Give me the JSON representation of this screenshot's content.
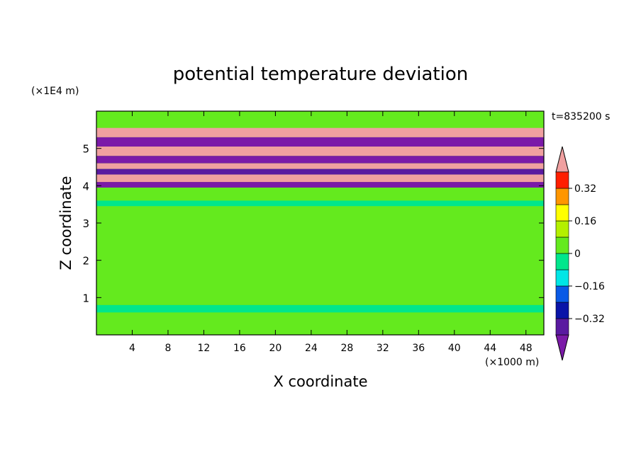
{
  "chart_data": {
    "type": "heatmap",
    "title": "potential temperature deviation",
    "xlabel": "X coordinate",
    "ylabel": "Z coordinate",
    "x_unit": "(×1000 m)",
    "y_unit": "(×1E4 m)",
    "time_label": "t=835200 s",
    "xlim": [
      0,
      50
    ],
    "ylim": [
      0,
      6
    ],
    "x_ticks": [
      4,
      8,
      12,
      16,
      20,
      24,
      28,
      32,
      36,
      40,
      44,
      48
    ],
    "x_tick_labels": [
      "4",
      "8",
      "12",
      "16",
      "20",
      "24",
      "28",
      "32",
      "36",
      "40",
      "44",
      "48"
    ],
    "y_ticks": [
      1,
      2,
      3,
      4,
      5
    ],
    "y_tick_labels": [
      "1",
      "2",
      "3",
      "4",
      "5"
    ],
    "colorbar": {
      "levels": [
        -0.4,
        -0.32,
        -0.24,
        -0.16,
        -0.08,
        0,
        0.08,
        0.16,
        0.24,
        0.32,
        0.4
      ],
      "colors": [
        "#7b1aa8",
        "#5a1aa0",
        "#0a14a8",
        "#0a5ae6",
        "#00e6e6",
        "#00e68c",
        "#64ea1e",
        "#b4f000",
        "#ffff00",
        "#ff9600",
        "#ff1e00",
        "#f0a0a0"
      ],
      "tick_values": [
        0.32,
        0.16,
        0,
        -0.16,
        -0.32
      ],
      "tick_labels": [
        "0.32",
        "0.16",
        "0",
        "−0.16",
        "−0.32"
      ]
    },
    "bands": [
      {
        "z": [
          5.3,
          5.55
        ],
        "value": 0.45
      },
      {
        "z": [
          5.05,
          5.3
        ],
        "value": -0.45
      },
      {
        "z": [
          4.8,
          5.05
        ],
        "value": 0.45
      },
      {
        "z": [
          4.6,
          4.8
        ],
        "value": -0.45
      },
      {
        "z": [
          4.45,
          4.6
        ],
        "value": 0.45
      },
      {
        "z": [
          4.3,
          4.45
        ],
        "value": -0.4
      },
      {
        "z": [
          4.1,
          4.3
        ],
        "value": 0.45
      },
      {
        "z": [
          3.95,
          4.1
        ],
        "value": -0.45
      },
      {
        "z": [
          3.6,
          3.95
        ],
        "value": 0.05
      },
      {
        "z": [
          3.45,
          3.6
        ],
        "value": -0.05
      },
      {
        "z": [
          0.8,
          3.45
        ],
        "value": 0.05
      },
      {
        "z": [
          0.6,
          0.8
        ],
        "value": -0.04
      },
      {
        "z": [
          0,
          0.6
        ],
        "value": 0.06
      }
    ]
  }
}
